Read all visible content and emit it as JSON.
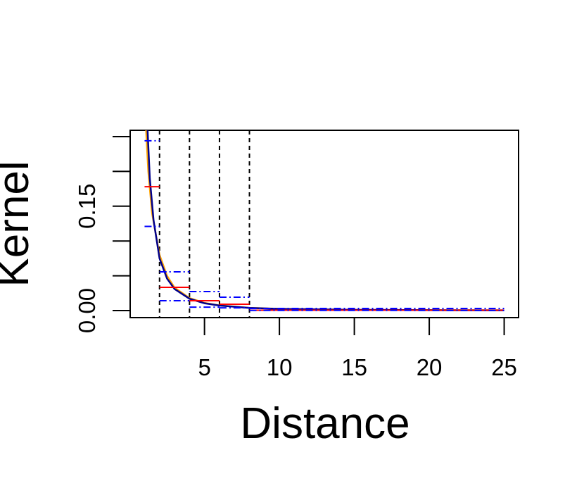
{
  "chart_data": {
    "type": "line",
    "xlabel": "Distance",
    "ylabel": "Kernel",
    "xlim": [
      0.04,
      25.96
    ],
    "xticks": [
      5,
      10,
      15,
      20,
      25
    ],
    "ylim": [
      -0.0101,
      0.2591
    ],
    "yticks": [
      {
        "value": 0,
        "label": "0.00"
      },
      {
        "value": 0.05,
        "label": null
      },
      {
        "value": 0.1,
        "label": null
      },
      0.15,
      {
        "value": 0.2,
        "label": null
      },
      {
        "value": 0.25,
        "label": null
      }
    ],
    "vlines": [
      2,
      4,
      6,
      8
    ],
    "vline_color": "#000000",
    "series": [
      {
        "color": "#ffa500",
        "linestyle": "solid",
        "x": [
          1.1,
          1.25,
          1.5,
          2,
          2.5,
          3,
          4,
          5,
          6,
          8,
          10,
          15,
          20,
          25
        ],
        "values": [
          0.26,
          0.2,
          0.14,
          0.08,
          0.05,
          0.033,
          0.018,
          0.011,
          0.0075,
          0.004,
          0.0025,
          0.001,
          0.0006,
          0.0004
        ]
      },
      {
        "color": "#00008b",
        "linestyle": "solid",
        "x": [
          1.2,
          1.35,
          1.6,
          2,
          2.5,
          3,
          4,
          5,
          6,
          8,
          10,
          15,
          20,
          25
        ],
        "values": [
          0.26,
          0.19,
          0.13,
          0.075,
          0.046,
          0.031,
          0.017,
          0.0105,
          0.0072,
          0.0038,
          0.0024,
          0.001,
          0.0006,
          0.0004
        ]
      },
      {
        "color": "#ff0000",
        "linestyle": "solid",
        "bins": [
          1,
          2,
          4,
          6,
          8,
          25
        ],
        "values": [
          0.178,
          0.0334,
          0.0142,
          0.0091,
          0.0005
        ]
      },
      {
        "color": "#0000ff",
        "linestyle": "dashdot",
        "bins": [
          1,
          2,
          4,
          6,
          8,
          25
        ],
        "values": [
          0.244,
          0.0557,
          0.0273,
          0.0192,
          0.003
        ]
      },
      {
        "color": "#0000ff",
        "linestyle": "dashdot",
        "bins": [
          1,
          2,
          4,
          6,
          8,
          25
        ],
        "values": [
          0.121,
          0.0142,
          0.005,
          0.004,
          0.0003
        ]
      }
    ]
  }
}
